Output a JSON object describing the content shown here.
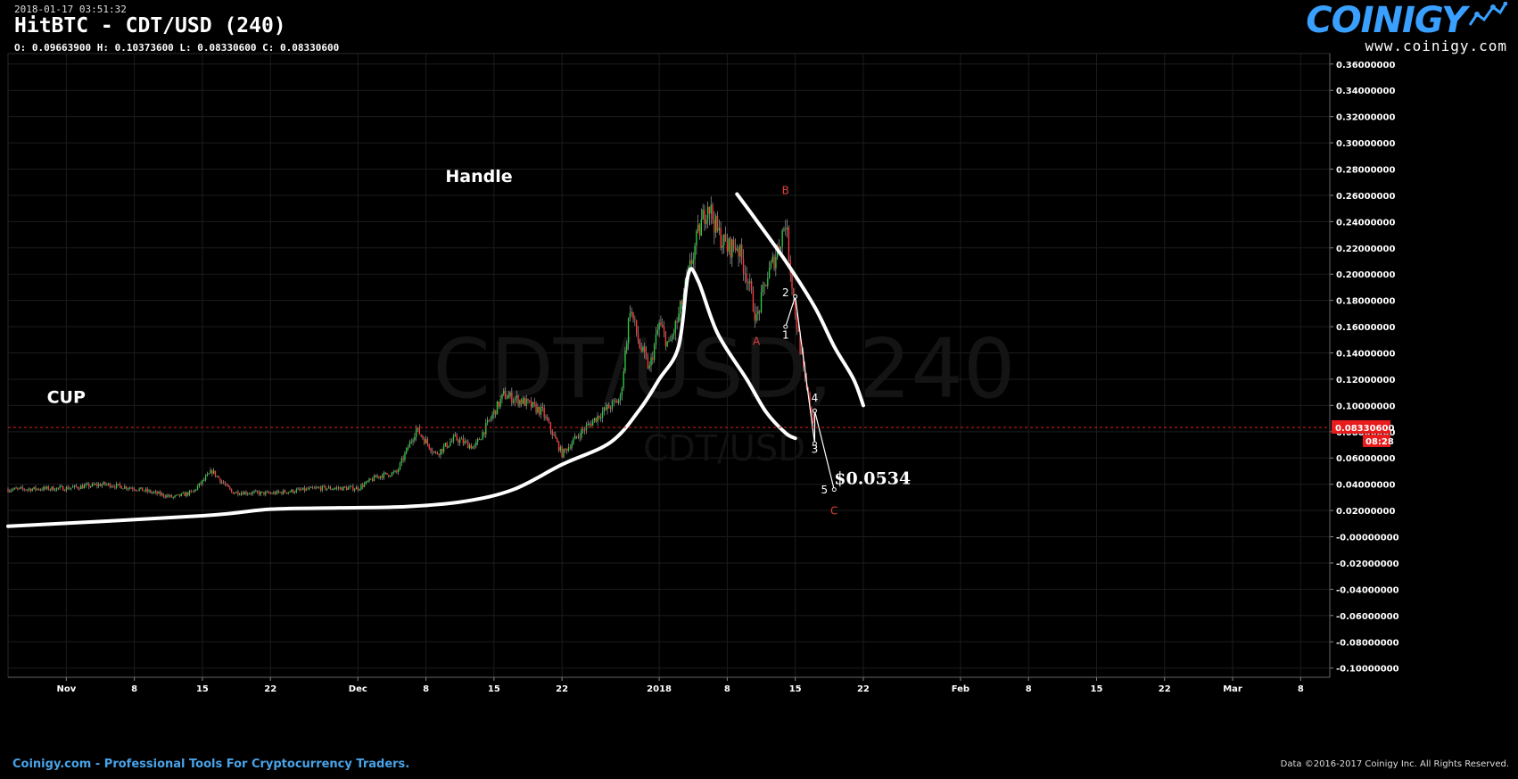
{
  "header": {
    "timestamp": "2018-01-17 03:51:32",
    "title": "HitBTC - CDT/USD (240)",
    "ohlc": "O: 0.09663900 H: 0.10373600 L: 0.08330600 C: 0.08330600"
  },
  "logo": {
    "word": "COINIGY",
    "url": "www.coinigy.com"
  },
  "watermark": {
    "main": "CDT/USD, 240",
    "sub": "CDT/USD"
  },
  "footer": {
    "left": "Coinigy.com - Professional Tools For Cryptocurrency Traders.",
    "right": "Data ©2016-2017 Coinigy Inc. All Rights Reserved."
  },
  "colors": {
    "up": "#2ecc40",
    "down": "#ff3b3b",
    "grid": "#1c1c1c",
    "annot_red": "#e0403a",
    "price_tag": "#e81c1c"
  },
  "chart_data": {
    "type": "candlestick",
    "x_tick_labels": [
      "Nov",
      "8",
      "15",
      "22",
      "Dec",
      "8",
      "15",
      "22",
      "2018",
      "8",
      "15",
      "22",
      "Feb",
      "8",
      "15",
      "22",
      "Mar",
      "8"
    ],
    "x_ticks": [
      "2017-11-01",
      "2017-11-08",
      "2017-11-15",
      "2017-11-22",
      "2017-12-01",
      "2017-12-08",
      "2017-12-15",
      "2017-12-22",
      "2018-01-01",
      "2018-01-08",
      "2018-01-15",
      "2018-01-22",
      "2018-02-01",
      "2018-02-08",
      "2018-02-15",
      "2018-02-22",
      "2018-03-01",
      "2018-03-08"
    ],
    "x_range": [
      "2017-10-26",
      "2018-03-11"
    ],
    "y_tick_labels": [
      "0.36000000",
      "0.34000000",
      "0.32000000",
      "0.30000000",
      "0.28000000",
      "0.26000000",
      "0.24000000",
      "0.22000000",
      "0.20000000",
      "0.18000000",
      "0.16000000",
      "0.14000000",
      "0.12000000",
      "0.10000000",
      "0.08000000",
      "0.06000000",
      "0.04000000",
      "0.02000000",
      "-0.00000000",
      "-0.02000000",
      "-0.04000000",
      "-0.06000000",
      "-0.08000000",
      "-0.10000000"
    ],
    "y_ticks": [
      0.36,
      0.34,
      0.32,
      0.3,
      0.28,
      0.26,
      0.24,
      0.22,
      0.2,
      0.18,
      0.16,
      0.14,
      0.12,
      0.1,
      0.08,
      0.06,
      0.04,
      0.02,
      0,
      -0.02,
      -0.04,
      -0.06,
      -0.08,
      -0.1
    ],
    "ylim": [
      -0.107,
      0.368
    ],
    "grid": true,
    "last_price": {
      "value": 0.0833,
      "label": "0.08330600",
      "countdown": "08:28"
    },
    "price_path": [
      [
        "2017-10-26",
        0.036
      ],
      [
        "2017-11-01",
        0.037
      ],
      [
        "2017-11-05",
        0.04
      ],
      [
        "2017-11-08",
        0.037
      ],
      [
        "2017-11-12",
        0.03
      ],
      [
        "2017-11-14",
        0.034
      ],
      [
        "2017-11-16",
        0.05
      ],
      [
        "2017-11-18",
        0.034
      ],
      [
        "2017-11-22",
        0.033
      ],
      [
        "2017-11-27",
        0.037
      ],
      [
        "2017-12-01",
        0.037
      ],
      [
        "2017-12-03",
        0.046
      ],
      [
        "2017-12-05",
        0.049
      ],
      [
        "2017-12-07",
        0.082
      ],
      [
        "2017-12-09",
        0.063
      ],
      [
        "2017-12-11",
        0.075
      ],
      [
        "2017-12-13",
        0.068
      ],
      [
        "2017-12-16",
        0.108
      ],
      [
        "2017-12-18",
        0.103
      ],
      [
        "2017-12-20",
        0.095
      ],
      [
        "2017-12-22",
        0.063
      ],
      [
        "2017-12-24",
        0.08
      ],
      [
        "2017-12-26",
        0.094
      ],
      [
        "2017-12-28",
        0.105
      ],
      [
        "2017-12-29",
        0.175
      ],
      [
        "2017-12-30",
        0.145
      ],
      [
        "2017-12-31",
        0.128
      ],
      [
        "2018-01-01",
        0.162
      ],
      [
        "2018-01-02",
        0.145
      ],
      [
        "2018-01-03",
        0.168
      ],
      [
        "2018-01-04",
        0.2
      ],
      [
        "2018-01-05",
        0.23
      ],
      [
        "2018-01-06",
        0.255
      ],
      [
        "2018-01-07",
        0.232
      ],
      [
        "2018-01-08",
        0.22
      ],
      [
        "2018-01-09",
        0.222
      ],
      [
        "2018-01-10",
        0.2
      ],
      [
        "2018-01-11",
        0.165
      ],
      [
        "2018-01-12",
        0.195
      ],
      [
        "2018-01-13",
        0.215
      ],
      [
        "2018-01-14",
        0.24
      ],
      [
        "2018-01-15",
        0.17
      ],
      [
        "2018-01-16",
        0.118
      ],
      [
        "2018-01-17",
        0.0833
      ]
    ],
    "annotations": [
      {
        "type": "text",
        "label": "Handle",
        "x": "2017-12-10",
        "y": 0.27,
        "color": "#ffffff",
        "size": "large"
      },
      {
        "type": "text",
        "label": "CUP",
        "x": "2017-10-30",
        "y": 0.102,
        "color": "#ffffff",
        "size": "large"
      },
      {
        "type": "text",
        "label": "$0.0534",
        "x": "2018-01-19",
        "y": 0.04,
        "color": "#ffffff",
        "size": "large"
      },
      {
        "type": "text",
        "label": "A",
        "x": "2018-01-11",
        "y": 0.146,
        "color": "#e0403a",
        "size": "small"
      },
      {
        "type": "text",
        "label": "B",
        "x": "2018-01-14",
        "y": 0.261,
        "color": "#e0403a",
        "size": "small"
      },
      {
        "type": "text",
        "label": "C",
        "x": "2018-01-19",
        "y": 0.017,
        "color": "#e0403a",
        "size": "small"
      },
      {
        "type": "text",
        "label": "1",
        "x": "2018-01-14",
        "y": 0.151,
        "color": "#ffffff",
        "size": "small"
      },
      {
        "type": "text",
        "label": "2",
        "x": "2018-01-14",
        "y": 0.183,
        "color": "#ffffff",
        "size": "small"
      },
      {
        "type": "text",
        "label": "3",
        "x": "2018-01-17",
        "y": 0.064,
        "color": "#ffffff",
        "size": "small"
      },
      {
        "type": "text",
        "label": "4",
        "x": "2018-01-17",
        "y": 0.103,
        "color": "#ffffff",
        "size": "small"
      },
      {
        "type": "text",
        "label": "5",
        "x": "2018-01-18",
        "y": 0.033,
        "color": "#ffffff",
        "size": "small"
      },
      {
        "type": "curve",
        "name": "cup-curve",
        "points": [
          [
            "2017-10-26",
            0.008
          ],
          [
            "2017-11-15",
            0.016
          ],
          [
            "2017-11-22",
            0.021
          ],
          [
            "2017-11-29",
            0.022
          ],
          [
            "2017-12-06",
            0.023
          ],
          [
            "2017-12-12",
            0.027
          ],
          [
            "2017-12-17",
            0.036
          ],
          [
            "2017-12-22",
            0.055
          ],
          [
            "2017-12-27",
            0.072
          ],
          [
            "2017-12-30",
            0.097
          ],
          [
            "2018-01-01",
            0.12
          ],
          [
            "2018-01-03",
            0.145
          ],
          [
            "2018-01-04",
            0.2
          ],
          [
            "2018-01-05",
            0.195
          ],
          [
            "2018-01-07",
            0.155
          ],
          [
            "2018-01-10",
            0.12
          ],
          [
            "2018-01-12",
            0.095
          ],
          [
            "2018-01-14",
            0.079
          ],
          [
            "2018-01-15",
            0.075
          ]
        ]
      },
      {
        "type": "curve",
        "name": "handle-curve",
        "points": [
          [
            "2018-01-09",
            0.261
          ],
          [
            "2018-01-11",
            0.241
          ],
          [
            "2018-01-14",
            0.21
          ],
          [
            "2018-01-17",
            0.175
          ],
          [
            "2018-01-19",
            0.145
          ],
          [
            "2018-01-21",
            0.12
          ],
          [
            "2018-01-22",
            0.1
          ]
        ]
      },
      {
        "type": "polyline",
        "name": "elliott-wave",
        "points": [
          [
            "2018-01-14",
            0.16
          ],
          [
            "2018-01-15",
            0.183
          ],
          [
            "2018-01-17",
            0.071
          ],
          [
            "2018-01-17",
            0.096
          ],
          [
            "2018-01-19",
            0.036
          ]
        ]
      }
    ]
  }
}
